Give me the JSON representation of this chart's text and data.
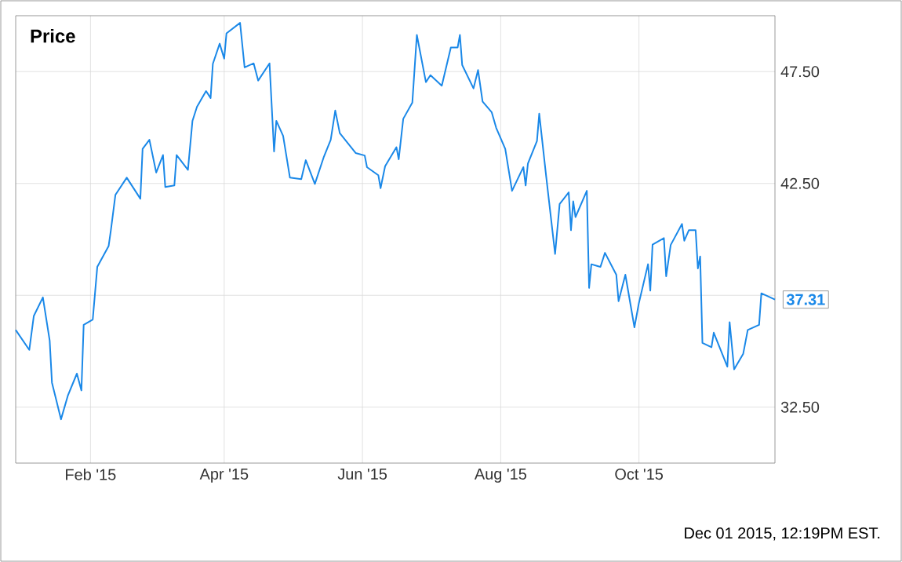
{
  "chart_data": {
    "type": "line",
    "title": "Price",
    "x": [
      "2014-12-30",
      "2015-01-05",
      "2015-01-07",
      "2015-01-11",
      "2015-01-14",
      "2015-01-15",
      "2015-01-19",
      "2015-01-22",
      "2015-01-26",
      "2015-01-28",
      "2015-01-29",
      "2015-02-02",
      "2015-02-04",
      "2015-02-09",
      "2015-02-10",
      "2015-02-12",
      "2015-02-17",
      "2015-02-23",
      "2015-02-24",
      "2015-02-27",
      "2015-03-02",
      "2015-03-05",
      "2015-03-06",
      "2015-03-10",
      "2015-03-11",
      "2015-03-16",
      "2015-03-18",
      "2015-03-20",
      "2015-03-24",
      "2015-03-26",
      "2015-03-27",
      "2015-03-30",
      "2015-04-01",
      "2015-04-02",
      "2015-04-08",
      "2015-04-10",
      "2015-04-14",
      "2015-04-16",
      "2015-04-21",
      "2015-04-23",
      "2015-04-24",
      "2015-04-27",
      "2015-04-30",
      "2015-05-05",
      "2015-05-07",
      "2015-05-11",
      "2015-05-15",
      "2015-05-18",
      "2015-05-20",
      "2015-05-22",
      "2015-05-29",
      "2015-06-02",
      "2015-06-03",
      "2015-06-08",
      "2015-06-09",
      "2015-06-11",
      "2015-06-16",
      "2015-06-17",
      "2015-06-19",
      "2015-06-23",
      "2015-06-25",
      "2015-06-29",
      "2015-07-01",
      "2015-07-06",
      "2015-07-10",
      "2015-07-13",
      "2015-07-14",
      "2015-07-15",
      "2015-07-20",
      "2015-07-22",
      "2015-07-24",
      "2015-07-28",
      "2015-07-30",
      "2015-08-03",
      "2015-08-06",
      "2015-08-11",
      "2015-08-12",
      "2015-08-13",
      "2015-08-17",
      "2015-08-18",
      "2015-08-21",
      "2015-08-25",
      "2015-08-27",
      "2015-08-31",
      "2015-09-01",
      "2015-09-02",
      "2015-09-03",
      "2015-09-08",
      "2015-09-09",
      "2015-09-10",
      "2015-09-14",
      "2015-09-16",
      "2015-09-21",
      "2015-09-22",
      "2015-09-25",
      "2015-09-29",
      "2015-10-01",
      "2015-10-05",
      "2015-10-06",
      "2015-10-07",
      "2015-10-12",
      "2015-10-13",
      "2015-10-15",
      "2015-10-20",
      "2015-10-21",
      "2015-10-23",
      "2015-10-26",
      "2015-10-27",
      "2015-10-28",
      "2015-10-29",
      "2015-11-02",
      "2015-11-03",
      "2015-11-09",
      "2015-11-10",
      "2015-11-12",
      "2015-11-16",
      "2015-11-18",
      "2015-11-23",
      "2015-11-24",
      "2015-11-30"
    ],
    "series": [
      {
        "color": "#1a88e8",
        "values": [
          35.95,
          35.06,
          36.58,
          37.41,
          35.48,
          33.6,
          31.96,
          33.01,
          34.0,
          33.25,
          36.18,
          36.42,
          38.77,
          39.7,
          40.41,
          41.99,
          42.76,
          41.82,
          44.05,
          44.45,
          42.99,
          43.77,
          42.34,
          42.41,
          43.77,
          43.11,
          45.3,
          45.93,
          46.63,
          46.32,
          47.85,
          48.75,
          48.08,
          49.21,
          49.68,
          47.69,
          47.87,
          47.1,
          47.87,
          43.93,
          45.3,
          44.63,
          42.76,
          42.69,
          43.54,
          42.48,
          43.7,
          44.45,
          45.76,
          44.75,
          43.86,
          43.75,
          43.23,
          42.87,
          42.29,
          43.27,
          44.12,
          43.58,
          45.39,
          46.11,
          49.14,
          47.03,
          47.34,
          46.87,
          48.58,
          48.58,
          49.14,
          47.8,
          46.75,
          47.57,
          46.16,
          45.69,
          44.99,
          44.05,
          42.17,
          43.23,
          42.41,
          43.39,
          44.4,
          45.62,
          42.87,
          39.35,
          41.58,
          42.1,
          40.41,
          41.7,
          41.0,
          42.17,
          37.83,
          38.89,
          38.77,
          39.4,
          38.42,
          37.24,
          38.42,
          36.07,
          37.17,
          38.89,
          37.71,
          39.77,
          40.06,
          38.35,
          39.75,
          40.69,
          39.94,
          40.41,
          40.41,
          38.7,
          39.24,
          35.37,
          35.18,
          35.83,
          34.31,
          36.3,
          34.19,
          34.89,
          35.95,
          36.18,
          37.59,
          37.31
        ]
      }
    ],
    "xlim": [
      "2014-12-30",
      "2015-11-30"
    ],
    "xticks": [
      {
        "value": "2015-02-01",
        "label": "Feb '15"
      },
      {
        "value": "2015-04-01",
        "label": "Apr '15"
      },
      {
        "value": "2015-06-01",
        "label": "Jun '15"
      },
      {
        "value": "2015-08-01",
        "label": "Aug '15"
      },
      {
        "value": "2015-10-01",
        "label": "Oct '15"
      }
    ],
    "ylim": [
      30,
      50
    ],
    "yticks": [
      {
        "value": 32.5,
        "label": "32.50"
      },
      {
        "value": 37.5,
        "label": null
      },
      {
        "value": 42.5,
        "label": "42.50"
      },
      {
        "value": 47.5,
        "label": "47.50"
      }
    ],
    "grid": true,
    "marker": "none",
    "line_style": "solid",
    "annotations": [
      {
        "text": "37.31",
        "x": "2015-11-30",
        "y": 37.31
      },
      "Dec 01 2015, 12:19PM EST."
    ]
  }
}
